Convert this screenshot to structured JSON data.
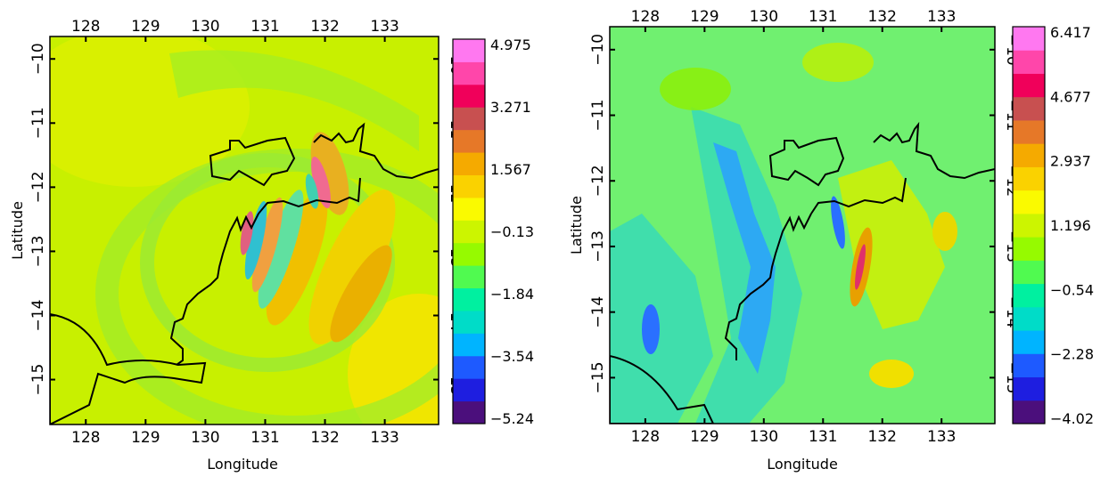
{
  "chart_data": [
    {
      "type": "heatmap",
      "title": "",
      "xlabel": "Longitude",
      "ylabel": "Latitude",
      "x_ticks": [
        128,
        129,
        130,
        131,
        132,
        133
      ],
      "y_ticks": [
        -10,
        -11,
        -12,
        -13,
        -14,
        -15
      ],
      "xlim": [
        127.4,
        133.9
      ],
      "ylim": [
        -15.7,
        -9.65
      ],
      "colorbar_labels": [
        "4.975",
        "3.271",
        "1.567",
        "-0.13",
        "-1.84",
        "-3.54",
        "-5.24"
      ],
      "colorbar_range": [
        -5.24,
        4.975
      ],
      "background_color": "#c8f000",
      "grid": false
    },
    {
      "type": "heatmap",
      "title": "",
      "xlabel": "Longitude",
      "ylabel": "Latitude",
      "x_ticks": [
        128,
        129,
        130,
        131,
        132,
        133
      ],
      "y_ticks": [
        -10,
        -11,
        -12,
        -13,
        -14,
        -15
      ],
      "xlim": [
        127.4,
        133.9
      ],
      "ylim": [
        -15.7,
        -9.65
      ],
      "colorbar_labels": [
        "6.417",
        "4.677",
        "2.937",
        "1.196",
        "-0.54",
        "-2.28",
        "-4.02"
      ],
      "colorbar_range": [
        -4.02,
        6.417
      ],
      "background_color": "#70f070",
      "grid": false
    }
  ],
  "palette": [
    "#4b0f7c",
    "#1e1ee0",
    "#1e5aff",
    "#00b4ff",
    "#00dcc8",
    "#00f0a0",
    "#50fa50",
    "#96fa00",
    "#ccf500",
    "#fafa00",
    "#fad200",
    "#f5aa00",
    "#e67828",
    "#c85050",
    "#f0005a",
    "#ff46aa",
    "#ff78f0"
  ]
}
